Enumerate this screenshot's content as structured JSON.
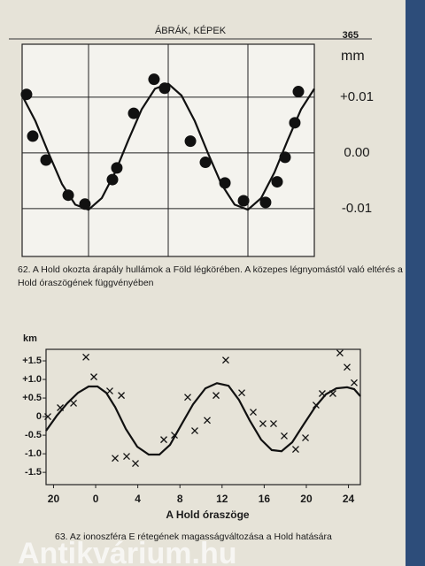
{
  "page": {
    "header": "ÁBRÁK, KÉPEK",
    "number": "365",
    "watermark": "Antikvárium.hu"
  },
  "chart_data": [
    {
      "type": "scatter",
      "marker": "circle",
      "color": "#111111",
      "y_axis_side": "right",
      "grid": true,
      "y_label": "mm",
      "caption": "62. A Hold okozta árapály  hullámok a Föld légkörében. A közepes légnyomástól való eltérés a Hold óraszögének függvényében",
      "xlim": [
        0,
        22
      ],
      "ylim": [
        -0.0186,
        0.0195
      ],
      "xgrid": [
        5,
        11,
        17
      ],
      "yticks": [
        {
          "value": 0.01,
          "label": "+0.01"
        },
        {
          "value": 0,
          "label": "0.00"
        },
        {
          "value": -0.01,
          "label": "-0.01"
        }
      ],
      "points": {
        "x": [
          0.33,
          0.8,
          1.8,
          3.47,
          4.73,
          6.8,
          7.13,
          8.4,
          9.93,
          10.73,
          12.67,
          13.8,
          15.27,
          16.67,
          18.33,
          19.2,
          19.8,
          20.53,
          20.8
        ],
        "y": [
          0.0105,
          0.003,
          -0.0013,
          -0.0076,
          -0.0092,
          -0.0048,
          -0.0027,
          0.0071,
          0.0132,
          0.0116,
          0.0021,
          -0.0017,
          -0.0054,
          -0.0086,
          -0.0089,
          -0.0052,
          -0.0008,
          0.0054,
          0.011
        ]
      },
      "curve": {
        "x": [
          0,
          1,
          2,
          3,
          4,
          5,
          6,
          7,
          8,
          9,
          10,
          11,
          12,
          13,
          14,
          15,
          16,
          17,
          18,
          19,
          20,
          21,
          22
        ],
        "y": [
          0.0103,
          0.0057,
          -0.0001,
          -0.0056,
          -0.0093,
          -0.0102,
          -0.0081,
          -0.0035,
          0.0023,
          0.0078,
          0.0115,
          0.0124,
          0.0103,
          0.0057,
          -0.0001,
          -0.0056,
          -0.0093,
          -0.0102,
          -0.0081,
          -0.0035,
          0.0023,
          0.0078,
          0.0115
        ]
      }
    },
    {
      "type": "scatter",
      "marker": "x",
      "color": "#111111",
      "y_axis_side": "left",
      "grid": false,
      "y_label": "km",
      "x_label": "A Hold óraszöge",
      "caption": "63. Az ionoszféra E rétegének magasságváltozása a Hold hatására",
      "xlim": [
        -4.71,
        25.13
      ],
      "ylim": [
        -1.83,
        1.81
      ],
      "xticks": [
        {
          "value": -4,
          "label": "20"
        },
        0,
        4,
        8,
        12,
        16,
        20,
        24
      ],
      "yticks": [
        {
          "value": 1.5,
          "label": "+1.5"
        },
        {
          "value": 1.0,
          "label": "+1.0"
        },
        {
          "value": 0.5,
          "label": "+0.5"
        },
        0,
        -0.5,
        {
          "value": -1.0,
          "label": "-1.0"
        },
        {
          "value": -1.5,
          "label": "-1.5"
        }
      ],
      "points": {
        "x": [
          -4.54,
          -3.36,
          -2.1,
          -0.92,
          -0.17,
          1.34,
          2.44,
          1.85,
          2.94,
          3.78,
          6.47,
          7.48,
          8.74,
          9.41,
          10.59,
          11.43,
          12.35,
          13.87,
          14.96,
          15.88,
          16.89,
          17.9,
          18.99,
          19.92,
          20.92,
          21.51,
          22.52,
          23.19,
          23.87,
          24.54
        ],
        "y": [
          0,
          0.24,
          0.36,
          1.6,
          1.07,
          0.69,
          0.57,
          -1.12,
          -1.07,
          -1.26,
          -0.62,
          -0.5,
          0.52,
          -0.38,
          -0.1,
          0.57,
          1.52,
          0.64,
          0.12,
          -0.19,
          -0.19,
          -0.52,
          -0.88,
          -0.57,
          0.31,
          0.62,
          0.62,
          1.71,
          1.33,
          0.91
        ]
      },
      "curve": {
        "x": [
          -4.71,
          -3.7,
          -2.69,
          -1.68,
          -0.67,
          0.17,
          1.01,
          1.85,
          2.86,
          3.95,
          5.04,
          6.05,
          7.06,
          8.15,
          9.24,
          10.42,
          11.51,
          12.61,
          13.61,
          14.62,
          15.71,
          16.72,
          17.65,
          18.66,
          19.75,
          20.84,
          21.85,
          22.86,
          23.87,
          24.54,
          25.13
        ],
        "y": [
          -0.38,
          0.02,
          0.36,
          0.64,
          0.81,
          0.81,
          0.64,
          0.26,
          -0.33,
          -0.81,
          -1.02,
          -1.02,
          -0.76,
          -0.21,
          0.33,
          0.76,
          0.9,
          0.83,
          0.45,
          -0.1,
          -0.62,
          -0.9,
          -0.93,
          -0.69,
          -0.21,
          0.26,
          0.6,
          0.76,
          0.79,
          0.74,
          0.55
        ]
      }
    }
  ]
}
